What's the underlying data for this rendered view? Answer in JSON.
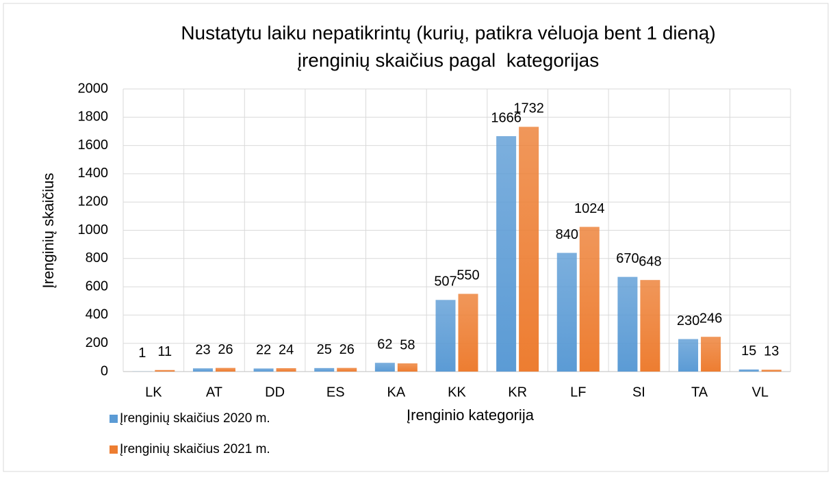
{
  "chart_data": {
    "type": "bar",
    "title": [
      "Nustatytu laiku nepatikrintų (kurių, patikra vėluoja bent 1 dieną)",
      "įrenginių skaičius pagal  kategorijas"
    ],
    "y_label": "Įrenginių skaičius",
    "x_label": "Įrenginio kategorija",
    "categories": [
      "LK",
      "AT",
      "DD",
      "ES",
      "KA",
      "KK",
      "KR",
      "LF",
      "SI",
      "TA",
      "VL"
    ],
    "series": [
      {
        "name": "Įrenginių skaičius 2020 m.",
        "color": "#5b9bd5",
        "values": [
          1,
          23,
          22,
          25,
          62,
          507,
          1666,
          840,
          670,
          230,
          15
        ]
      },
      {
        "name": "Įrenginių skaičius 2021 m.",
        "color": "#ed7d31",
        "values": [
          11,
          26,
          24,
          26,
          58,
          550,
          1732,
          1024,
          648,
          246,
          13
        ]
      }
    ],
    "ylim": [
      0,
      2000
    ],
    "yticks": [
      0,
      200,
      400,
      600,
      800,
      1000,
      1200,
      1400,
      1600,
      1800,
      2000
    ],
    "grid": true
  }
}
